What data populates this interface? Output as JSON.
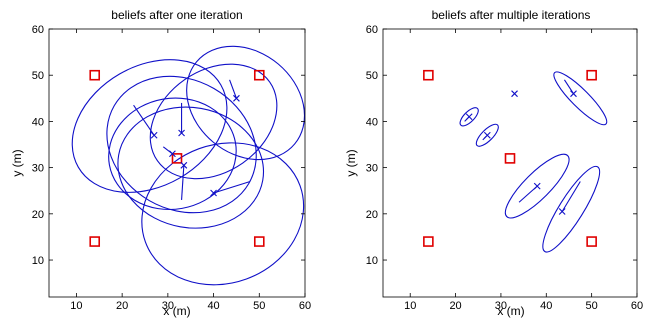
{
  "chart_data": [
    {
      "type": "scatter",
      "title": "beliefs after one iteration",
      "xlabel": "x (m)",
      "ylabel": "y (m)",
      "xlim": [
        4,
        60
      ],
      "ylim": [
        2,
        60
      ],
      "xticks": [
        10,
        20,
        30,
        40,
        50,
        60
      ],
      "yticks": [
        10,
        20,
        30,
        40,
        50,
        60
      ],
      "grid": false,
      "anchors": [
        [
          14,
          50
        ],
        [
          50,
          50
        ],
        [
          32,
          32
        ],
        [
          14,
          14
        ],
        [
          50,
          14
        ]
      ],
      "estimates": [
        {
          "x": 27,
          "y": 37,
          "tail": [
            [
              22.5,
              43.5
            ],
            [
              27,
              37
            ]
          ]
        },
        {
          "x": 33,
          "y": 37.5,
          "tail": [
            [
              33,
              44
            ],
            [
              33,
              37.5
            ]
          ]
        },
        {
          "x": 31,
          "y": 33,
          "tail": [
            [
              29,
              34.5
            ],
            [
              31,
              33
            ]
          ]
        },
        {
          "x": 33.5,
          "y": 30.5,
          "tail": [
            [
              33,
              23
            ],
            [
              33.5,
              30.5
            ]
          ]
        },
        {
          "x": 40,
          "y": 24.5,
          "tail": [
            [
              48,
              27
            ],
            [
              40,
              24.5
            ]
          ]
        },
        {
          "x": 45,
          "y": 45,
          "tail": [
            [
              43.5,
              49
            ],
            [
              45,
              45
            ]
          ]
        }
      ],
      "ellipses": [
        {
          "cx": 26,
          "cy": 39,
          "rx": 18,
          "ry": 13,
          "angle": 30
        },
        {
          "cx": 33,
          "cy": 35,
          "rx": 17,
          "ry": 14,
          "angle": -30
        },
        {
          "cx": 31,
          "cy": 33,
          "rx": 14,
          "ry": 12,
          "angle": 10
        },
        {
          "cx": 35,
          "cy": 30,
          "rx": 16,
          "ry": 13,
          "angle": -10
        },
        {
          "cx": 42,
          "cy": 20,
          "rx": 18,
          "ry": 15,
          "angle": 20
        },
        {
          "cx": 47,
          "cy": 44,
          "rx": 14,
          "ry": 11,
          "angle": -40
        },
        {
          "cx": 40,
          "cy": 40,
          "rx": 15,
          "ry": 11,
          "angle": 35
        }
      ]
    },
    {
      "type": "scatter",
      "title": "beliefs after multiple iterations",
      "xlabel": "x (m)",
      "ylabel": "y (m)",
      "xlim": [
        4,
        60
      ],
      "ylim": [
        2,
        60
      ],
      "xticks": [
        10,
        20,
        30,
        40,
        50,
        60
      ],
      "yticks": [
        10,
        20,
        30,
        40,
        50,
        60
      ],
      "grid": false,
      "anchors": [
        [
          14,
          50
        ],
        [
          50,
          50
        ],
        [
          32,
          32
        ],
        [
          14,
          14
        ],
        [
          50,
          14
        ]
      ],
      "estimates": [
        {
          "x": 23,
          "y": 41,
          "tail": [
            [
              22,
              40
            ],
            [
              23,
              41
            ]
          ]
        },
        {
          "x": 27,
          "y": 37,
          "tail": [
            [
              26,
              36
            ],
            [
              27,
              37
            ]
          ]
        },
        {
          "x": 33,
          "y": 46,
          "tail": [
            [
              33,
              46
            ],
            [
              33,
              46
            ]
          ]
        },
        {
          "x": 46,
          "y": 46,
          "tail": [
            [
              44,
              49
            ],
            [
              46,
              46
            ]
          ]
        },
        {
          "x": 38,
          "y": 26,
          "tail": [
            [
              34,
              22.5
            ],
            [
              38,
              26
            ]
          ]
        },
        {
          "x": 43.5,
          "y": 20.5,
          "tail": [
            [
              47.5,
              27
            ],
            [
              43.5,
              20.5
            ]
          ]
        }
      ],
      "ellipses": [
        {
          "cx": 23,
          "cy": 41,
          "rx": 2.6,
          "ry": 1.1,
          "angle": 45
        },
        {
          "cx": 27,
          "cy": 37,
          "rx": 3.2,
          "ry": 1.2,
          "angle": 45
        },
        {
          "cx": 47.5,
          "cy": 45,
          "rx": 8,
          "ry": 1.9,
          "angle": -45
        },
        {
          "cx": 38,
          "cy": 26,
          "rx": 9.5,
          "ry": 2.8,
          "angle": 45
        },
        {
          "cx": 45.5,
          "cy": 21,
          "rx": 11,
          "ry": 2.6,
          "angle": 58
        }
      ]
    }
  ]
}
